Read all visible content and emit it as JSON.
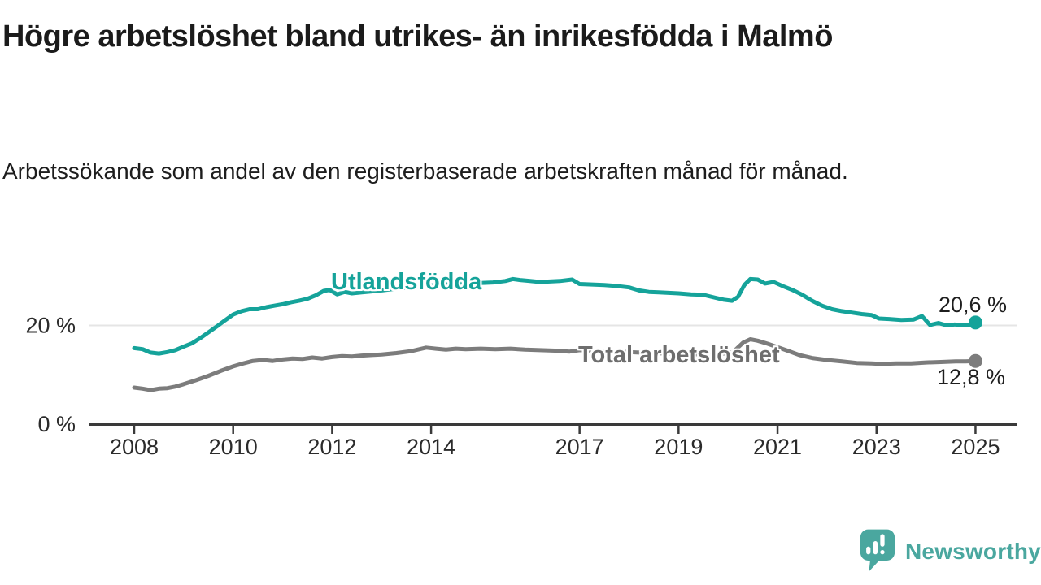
{
  "chart_data": {
    "type": "line",
    "title": "Högre arbetslöshet bland utrikes- än inrikesfödda i Malmö",
    "subtitle": "Arbetssökande som andel av den registerbaserade arbetskraften månad för månad.",
    "unit": "%",
    "grid": "horizontal-single-line",
    "legend_position": "inline-labels-on-lines",
    "x_axis": {
      "ticks": [
        2008,
        2010,
        2012,
        2014,
        2017,
        2019,
        2021,
        2023,
        2025
      ],
      "tick_labels": [
        "2008",
        "2010",
        "2012",
        "2014",
        "2017",
        "2019",
        "2021",
        "2023",
        "2025"
      ],
      "range": [
        2007.1,
        2025.8
      ]
    },
    "y_axis": {
      "tick_values": [
        20,
        0
      ],
      "tick_labels": [
        "20 %",
        "0 %"
      ],
      "grid_values": [
        20
      ],
      "range": [
        0,
        35
      ]
    },
    "series": [
      {
        "name": "Utlandsfödda",
        "color": "#15a39a",
        "end_value": 20.6,
        "end_label": "20,6 %",
        "points": [
          [
            2008.0,
            15.4
          ],
          [
            2008.17,
            15.2
          ],
          [
            2008.33,
            14.5
          ],
          [
            2008.5,
            14.3
          ],
          [
            2008.67,
            14.6
          ],
          [
            2008.83,
            15.0
          ],
          [
            2009.0,
            15.7
          ],
          [
            2009.17,
            16.4
          ],
          [
            2009.33,
            17.4
          ],
          [
            2009.5,
            18.6
          ],
          [
            2009.67,
            19.8
          ],
          [
            2009.83,
            21.0
          ],
          [
            2010.0,
            22.2
          ],
          [
            2010.17,
            22.9
          ],
          [
            2010.33,
            23.3
          ],
          [
            2010.5,
            23.3
          ],
          [
            2010.67,
            23.7
          ],
          [
            2010.83,
            24.0
          ],
          [
            2011.0,
            24.3
          ],
          [
            2011.17,
            24.7
          ],
          [
            2011.33,
            25.0
          ],
          [
            2011.5,
            25.4
          ],
          [
            2011.67,
            26.1
          ],
          [
            2011.83,
            27.0
          ],
          [
            2011.95,
            27.2
          ],
          [
            2012.1,
            26.3
          ],
          [
            2012.25,
            26.8
          ],
          [
            2012.4,
            26.5
          ],
          [
            2012.6,
            26.7
          ],
          [
            2012.8,
            26.9
          ],
          [
            2013.0,
            27.1
          ],
          [
            2013.25,
            27.4
          ],
          [
            2013.5,
            27.6
          ],
          [
            2013.75,
            27.9
          ],
          [
            2014.0,
            28.1
          ],
          [
            2014.25,
            28.3
          ],
          [
            2014.5,
            28.4
          ],
          [
            2014.75,
            28.5
          ],
          [
            2015.0,
            28.6
          ],
          [
            2015.25,
            28.7
          ],
          [
            2015.5,
            29.0
          ],
          [
            2015.65,
            29.4
          ],
          [
            2015.8,
            29.2
          ],
          [
            2016.0,
            29.0
          ],
          [
            2016.2,
            28.8
          ],
          [
            2016.4,
            28.9
          ],
          [
            2016.6,
            29.0
          ],
          [
            2016.85,
            29.3
          ],
          [
            2017.0,
            28.4
          ],
          [
            2017.25,
            28.3
          ],
          [
            2017.5,
            28.2
          ],
          [
            2017.75,
            28.0
          ],
          [
            2018.0,
            27.7
          ],
          [
            2018.2,
            27.1
          ],
          [
            2018.4,
            26.8
          ],
          [
            2018.6,
            26.7
          ],
          [
            2018.8,
            26.6
          ],
          [
            2019.0,
            26.5
          ],
          [
            2019.25,
            26.3
          ],
          [
            2019.5,
            26.2
          ],
          [
            2019.75,
            25.6
          ],
          [
            2019.92,
            25.2
          ],
          [
            2020.08,
            25.0
          ],
          [
            2020.2,
            25.8
          ],
          [
            2020.33,
            28.2
          ],
          [
            2020.45,
            29.4
          ],
          [
            2020.6,
            29.3
          ],
          [
            2020.75,
            28.5
          ],
          [
            2020.92,
            28.8
          ],
          [
            2021.1,
            28.0
          ],
          [
            2021.3,
            27.2
          ],
          [
            2021.5,
            26.2
          ],
          [
            2021.7,
            25.0
          ],
          [
            2021.9,
            24.0
          ],
          [
            2022.1,
            23.3
          ],
          [
            2022.3,
            22.9
          ],
          [
            2022.5,
            22.6
          ],
          [
            2022.7,
            22.3
          ],
          [
            2022.9,
            22.1
          ],
          [
            2023.05,
            21.4
          ],
          [
            2023.25,
            21.3
          ],
          [
            2023.5,
            21.1
          ],
          [
            2023.75,
            21.2
          ],
          [
            2023.92,
            21.9
          ],
          [
            2024.08,
            20.1
          ],
          [
            2024.25,
            20.5
          ],
          [
            2024.42,
            20.0
          ],
          [
            2024.58,
            20.2
          ],
          [
            2024.75,
            20.0
          ],
          [
            2024.9,
            20.2
          ],
          [
            2025.0,
            20.6
          ]
        ]
      },
      {
        "name": "Total arbetslöshet",
        "color": "#7c7c7c",
        "end_value": 12.8,
        "end_label": "12,8 %",
        "points": [
          [
            2008.0,
            7.4
          ],
          [
            2008.17,
            7.2
          ],
          [
            2008.33,
            6.9
          ],
          [
            2008.5,
            7.2
          ],
          [
            2008.67,
            7.3
          ],
          [
            2008.83,
            7.6
          ],
          [
            2009.0,
            8.1
          ],
          [
            2009.25,
            8.9
          ],
          [
            2009.5,
            9.8
          ],
          [
            2009.75,
            10.8
          ],
          [
            2010.0,
            11.7
          ],
          [
            2010.2,
            12.3
          ],
          [
            2010.4,
            12.8
          ],
          [
            2010.6,
            13.0
          ],
          [
            2010.8,
            12.8
          ],
          [
            2011.0,
            13.1
          ],
          [
            2011.2,
            13.3
          ],
          [
            2011.4,
            13.2
          ],
          [
            2011.6,
            13.5
          ],
          [
            2011.8,
            13.3
          ],
          [
            2012.0,
            13.6
          ],
          [
            2012.2,
            13.8
          ],
          [
            2012.4,
            13.7
          ],
          [
            2012.6,
            13.9
          ],
          [
            2012.8,
            14.0
          ],
          [
            2013.0,
            14.1
          ],
          [
            2013.3,
            14.4
          ],
          [
            2013.6,
            14.8
          ],
          [
            2013.9,
            15.5
          ],
          [
            2014.1,
            15.3
          ],
          [
            2014.3,
            15.1
          ],
          [
            2014.5,
            15.3
          ],
          [
            2014.7,
            15.2
          ],
          [
            2015.0,
            15.3
          ],
          [
            2015.3,
            15.2
          ],
          [
            2015.6,
            15.3
          ],
          [
            2015.9,
            15.1
          ],
          [
            2016.2,
            15.0
          ],
          [
            2016.5,
            14.9
          ],
          [
            2016.8,
            14.7
          ],
          [
            2017.0,
            15.0
          ],
          [
            2017.3,
            14.9
          ],
          [
            2017.6,
            14.8
          ],
          [
            2018.0,
            14.6
          ],
          [
            2018.4,
            14.4
          ],
          [
            2018.8,
            14.3
          ],
          [
            2019.2,
            14.2
          ],
          [
            2019.6,
            14.1
          ],
          [
            2019.9,
            14.3
          ],
          [
            2020.1,
            14.6
          ],
          [
            2020.3,
            16.5
          ],
          [
            2020.45,
            17.2
          ],
          [
            2020.6,
            16.9
          ],
          [
            2020.8,
            16.3
          ],
          [
            2021.0,
            15.6
          ],
          [
            2021.2,
            14.9
          ],
          [
            2021.44,
            14.0
          ],
          [
            2021.7,
            13.4
          ],
          [
            2022.0,
            13.0
          ],
          [
            2022.3,
            12.7
          ],
          [
            2022.6,
            12.4
          ],
          [
            2022.9,
            12.3
          ],
          [
            2023.1,
            12.2
          ],
          [
            2023.4,
            12.3
          ],
          [
            2023.7,
            12.3
          ],
          [
            2024.0,
            12.5
          ],
          [
            2024.3,
            12.6
          ],
          [
            2024.6,
            12.7
          ],
          [
            2024.8,
            12.7
          ],
          [
            2025.0,
            12.8
          ]
        ]
      }
    ],
    "style": {
      "axis_color": "#3a3a3a",
      "grid_color": "#e5e5e5",
      "tick_label_color": "#2b2b2b",
      "end_dot_radius": 8.5,
      "line_width": 5
    }
  },
  "footer": {
    "brand": "Newsworthy",
    "brand_color": "#4aa79f",
    "logo_icon": "newsworthy-speech-bubble-bar-chart-icon"
  }
}
